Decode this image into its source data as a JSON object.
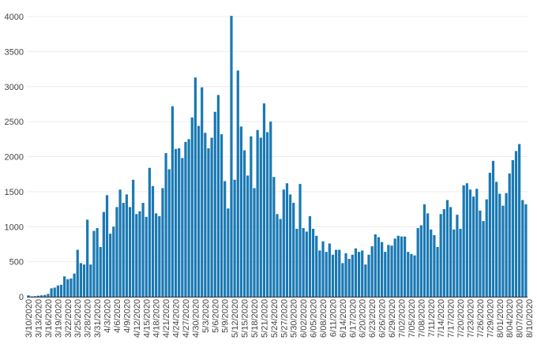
{
  "colors": {
    "bar": "#1a79b3",
    "grid": "#ececec",
    "axis": "#333333",
    "text": "#444444"
  },
  "chart_data": {
    "type": "bar",
    "title": "",
    "xlabel": "",
    "ylabel": "",
    "ylim": [
      0,
      4000
    ],
    "yticks": [
      0,
      500,
      1000,
      1500,
      2000,
      2500,
      3000,
      3500,
      4000
    ],
    "grid": true,
    "legend": "none",
    "start_date": "3/10/2020",
    "x_tick_labels": [
      "3/10/2020",
      "3/13/2020",
      "3/16/2020",
      "3/19/2020",
      "3/22/2020",
      "3/25/2020",
      "3/28/2020",
      "3/31/2020",
      "4/3/2020",
      "4/6/2020",
      "4/9/2020",
      "4/12/2020",
      "4/15/2020",
      "4/18/2020",
      "4/21/2020",
      "4/24/2020",
      "4/27/2020",
      "4/30/2020",
      "5/3/2020",
      "5/6/2020",
      "5/9/2020",
      "5/12/2020",
      "5/15/2020",
      "5/18/2020",
      "5/21/2020",
      "5/24/2020",
      "5/27/2020",
      "5/30/2020",
      "6/02/2020",
      "6/05/2020",
      "6/08/2020",
      "6/11/2020",
      "6/14/2020",
      "6/17/2020",
      "6/20/2020",
      "6/23/2020",
      "6/26/2020",
      "6/29/2020",
      "7/02/2020",
      "7/05/2020",
      "7/08/2020",
      "7/11/2020",
      "7/14/2020",
      "7/17/2020",
      "7/20/2020",
      "7/23/2020",
      "7/26/2020",
      "7/29/2020",
      "8/01/2020",
      "8/04/2020",
      "8/07/2020",
      "8/10/2020"
    ],
    "values": [
      20,
      5,
      8,
      15,
      20,
      25,
      40,
      120,
      130,
      160,
      170,
      290,
      250,
      260,
      330,
      670,
      480,
      460,
      1100,
      460,
      940,
      980,
      710,
      1210,
      1450,
      900,
      1000,
      1280,
      1530,
      1340,
      1460,
      1280,
      1670,
      1180,
      1220,
      1340,
      1140,
      1840,
      1580,
      1190,
      1150,
      1550,
      2050,
      1820,
      2720,
      2110,
      2120,
      1980,
      2210,
      2250,
      2560,
      3130,
      2440,
      2990,
      2340,
      2120,
      2270,
      2640,
      2880,
      2320,
      1650,
      1260,
      4010,
      1670,
      3230,
      2430,
      2090,
      1730,
      2290,
      1550,
      2380,
      2270,
      2760,
      2350,
      2500,
      1710,
      1180,
      1110,
      1530,
      1620,
      1460,
      1340,
      970,
      1610,
      980,
      930,
      1150,
      970,
      870,
      660,
      790,
      640,
      760,
      600,
      670,
      670,
      480,
      620,
      540,
      600,
      690,
      640,
      660,
      460,
      600,
      720,
      890,
      850,
      780,
      640,
      740,
      730,
      830,
      870,
      860,
      860,
      640,
      610,
      590,
      980,
      1020,
      1320,
      1190,
      960,
      880,
      710,
      1180,
      1250,
      1380,
      1280,
      960,
      1170,
      970,
      1590,
      1620,
      1530,
      1430,
      1540,
      1230,
      1080,
      1390,
      1770,
      1940,
      1640,
      1470,
      1300,
      1480,
      1760,
      1950,
      2080,
      2180,
      1380,
      1320
    ]
  }
}
